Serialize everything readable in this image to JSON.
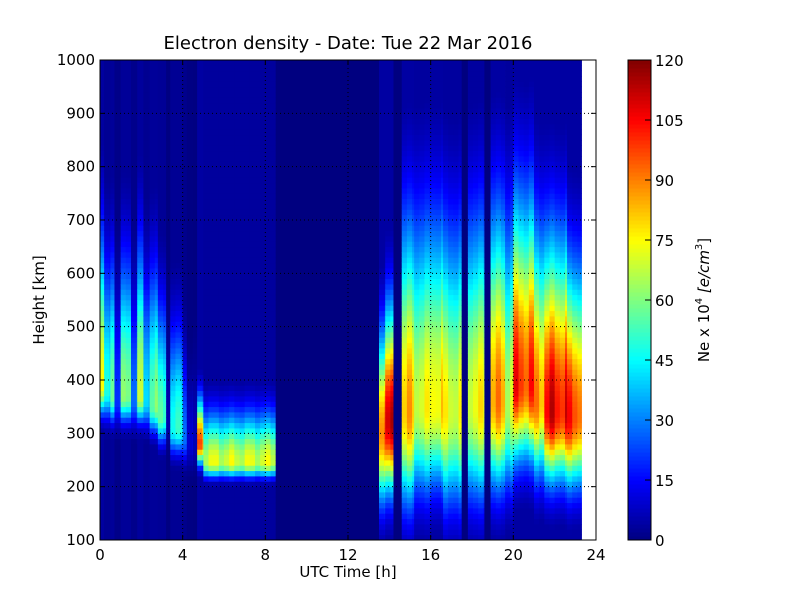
{
  "chart_data": {
    "type": "heatmap",
    "title": "Electron density - Date: Tue 22 Mar 2016",
    "xlabel": "UTC Time [h]",
    "ylabel": "Height [km]",
    "xlim": [
      0,
      24
    ],
    "ylim": [
      100,
      1000
    ],
    "xticks": [
      "0",
      "4",
      "8",
      "12",
      "16",
      "20",
      "24"
    ],
    "yticks": [
      "100",
      "200",
      "300",
      "400",
      "500",
      "600",
      "700",
      "800",
      "900",
      "1000"
    ],
    "grid": true,
    "colormap": "jet",
    "colorbar": {
      "label": "Ne x 10",
      "label_exp": "4",
      "label_units": "[e/cm",
      "label_units_exp": "3",
      "label_units_close": "]",
      "range": [
        0,
        120
      ],
      "ticks": [
        "0",
        "15",
        "30",
        "45",
        "60",
        "75",
        "90",
        "105",
        "120"
      ]
    },
    "data_end_hour": 23.3,
    "profile_columns": "t_start_h, t_end_h, peak_Ne, peak_height_km, lower_scale_km, upper_scale_km",
    "columns": [
      [
        0.0,
        0.2,
        75,
        390,
        50,
        260
      ],
      [
        0.2,
        0.5,
        45,
        380,
        50,
        230
      ],
      [
        0.5,
        0.7,
        60,
        370,
        45,
        240
      ],
      [
        0.7,
        1.0,
        22,
        360,
        45,
        200
      ],
      [
        1.0,
        1.5,
        58,
        370,
        45,
        240
      ],
      [
        1.5,
        1.8,
        30,
        360,
        45,
        200
      ],
      [
        1.8,
        2.1,
        66,
        370,
        45,
        260
      ],
      [
        2.1,
        2.4,
        40,
        360,
        45,
        220
      ],
      [
        2.4,
        2.8,
        60,
        350,
        45,
        240
      ],
      [
        2.8,
        3.2,
        52,
        330,
        45,
        200
      ],
      [
        3.2,
        3.4,
        6,
        330,
        45,
        150
      ],
      [
        3.4,
        4.0,
        48,
        310,
        45,
        180
      ],
      [
        4.0,
        4.2,
        30,
        290,
        40,
        150
      ],
      [
        4.2,
        4.5,
        10,
        280,
        40,
        120
      ],
      [
        4.5,
        4.7,
        6,
        280,
        40,
        150
      ],
      [
        4.7,
        5.0,
        95,
        280,
        35,
        80
      ],
      [
        5.0,
        8.5,
        70,
        245,
        25,
        90
      ],
      [
        8.5,
        13.5,
        0,
        300,
        50,
        100
      ],
      [
        13.5,
        13.8,
        95,
        300,
        120,
        180
      ],
      [
        13.8,
        14.2,
        108,
        320,
        120,
        200
      ],
      [
        14.2,
        14.6,
        0,
        300,
        50,
        100
      ],
      [
        14.6,
        15.2,
        82,
        340,
        160,
        330
      ],
      [
        15.2,
        16.0,
        72,
        350,
        150,
        330
      ],
      [
        16.0,
        16.6,
        78,
        350,
        140,
        330
      ],
      [
        16.6,
        17.5,
        72,
        340,
        160,
        320
      ],
      [
        17.5,
        17.8,
        0,
        300,
        50,
        100
      ],
      [
        17.8,
        18.6,
        74,
        350,
        160,
        330
      ],
      [
        18.6,
        18.9,
        0,
        300,
        50,
        100
      ],
      [
        18.9,
        19.6,
        86,
        360,
        150,
        330
      ],
      [
        19.6,
        20.0,
        70,
        350,
        140,
        330
      ],
      [
        20.0,
        21.0,
        100,
        390,
        130,
        320
      ],
      [
        21.0,
        21.5,
        88,
        360,
        130,
        300
      ],
      [
        21.5,
        22.6,
        106,
        340,
        120,
        300
      ],
      [
        22.6,
        23.3,
        98,
        330,
        120,
        260
      ]
    ]
  }
}
